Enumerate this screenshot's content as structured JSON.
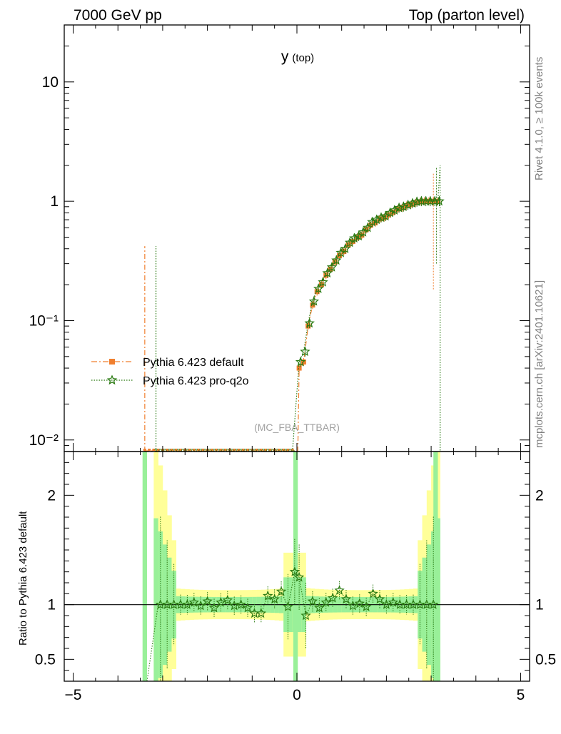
{
  "header": {
    "left": "7000 GeV pp",
    "right": "Top (parton level)",
    "plot_title_main": "y",
    "plot_title_sub": "(top)",
    "side_rivet": "Rivet 4.1.0, ≥ 100k events",
    "side_mcplots": "mcplots.cern.ch [arXiv:2401.10621]",
    "watermark": "(MC_FBA_TTBAR)"
  },
  "legend": [
    {
      "label": "Pythia 6.423 default",
      "color": "#f07f2e",
      "marker": "square",
      "line": "dash-dot"
    },
    {
      "label": "Pythia 6.423 pro-q2o",
      "color": "#2a7a12",
      "marker": "star",
      "line": "dotted"
    }
  ],
  "ratio_ylabel": "Ratio to Pythia 6.423 default",
  "chart_data": [
    {
      "type": "line",
      "panel": "main",
      "yscale": "log",
      "xlim": [
        -5.2,
        5.2
      ],
      "ylim": [
        0.008,
        30
      ],
      "y_ticks": [
        {
          "value": 10,
          "label": "10"
        },
        {
          "value": 1,
          "label": "1"
        },
        {
          "value": 0.1,
          "label": "10⁻¹"
        },
        {
          "value": 0.01,
          "label": "10⁻²"
        }
      ],
      "x": [
        0.05,
        0.15,
        0.25,
        0.35,
        0.45,
        0.55,
        0.65,
        0.75,
        0.85,
        0.95,
        1.05,
        1.15,
        1.25,
        1.35,
        1.45,
        1.55,
        1.65,
        1.75,
        1.85,
        1.95,
        2.05,
        2.15,
        2.25,
        2.35,
        2.45,
        2.55,
        2.65,
        2.75,
        2.85,
        2.95,
        3.05,
        3.15
      ],
      "series": [
        {
          "name": "Pythia 6.423 default",
          "values": [
            0.04,
            0.045,
            0.09,
            0.135,
            0.175,
            0.2,
            0.24,
            0.27,
            0.31,
            0.35,
            0.38,
            0.43,
            0.46,
            0.5,
            0.52,
            0.58,
            0.63,
            0.66,
            0.71,
            0.73,
            0.77,
            0.81,
            0.86,
            0.88,
            0.92,
            0.94,
            0.97,
            0.99,
            1.0,
            1.0,
            1.0,
            1.0
          ]
        },
        {
          "name": "Pythia 6.423 pro-q2o",
          "values": [
            0.045,
            0.055,
            0.095,
            0.145,
            0.185,
            0.21,
            0.25,
            0.28,
            0.32,
            0.37,
            0.4,
            0.45,
            0.49,
            0.51,
            0.55,
            0.6,
            0.67,
            0.7,
            0.73,
            0.75,
            0.8,
            0.84,
            0.88,
            0.9,
            0.93,
            0.96,
            0.99,
            1.0,
            1.0,
            1.0,
            1.0,
            1.0
          ]
        }
      ]
    },
    {
      "type": "line",
      "panel": "ratio",
      "xlim": [
        -5.2,
        5.2
      ],
      "ylim": [
        0.3,
        2.4
      ],
      "x_ticks": [
        -5,
        0,
        5
      ],
      "y_ticks": [
        0.5,
        1,
        2
      ],
      "reference": 1,
      "x": [
        -3.05,
        -2.9,
        -2.75,
        -2.6,
        -2.45,
        -2.3,
        -2.15,
        -2.0,
        -1.85,
        -1.7,
        -1.55,
        -1.4,
        -1.25,
        -1.1,
        -0.95,
        -0.8,
        -0.65,
        -0.5,
        -0.35,
        -0.2,
        -0.05,
        0.05,
        0.2,
        0.35,
        0.5,
        0.65,
        0.8,
        0.95,
        1.1,
        1.25,
        1.4,
        1.55,
        1.7,
        1.85,
        2.0,
        2.15,
        2.3,
        2.45,
        2.6,
        2.75,
        2.9,
        3.05
      ],
      "series": [
        {
          "name": "Pythia 6.423 pro-q2o",
          "values": [
            1.0,
            1.0,
            1.0,
            1.0,
            1.0,
            1.02,
            0.99,
            1.03,
            0.97,
            1.02,
            1.04,
            0.99,
            1.0,
            0.97,
            0.92,
            0.92,
            1.08,
            1.05,
            1.12,
            0.98,
            1.3,
            1.25,
            0.9,
            1.03,
            0.97,
            1.02,
            1.06,
            1.13,
            1.05,
            0.99,
            1.01,
            0.98,
            1.1,
            1.05,
            1.0,
            1.02,
            1.0,
            1.0,
            1.0,
            1.0,
            1.0,
            1.0
          ]
        }
      ]
    }
  ]
}
